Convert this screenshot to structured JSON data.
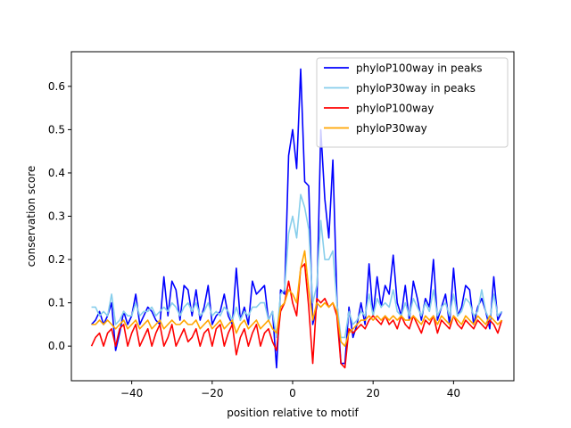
{
  "chart_data": {
    "type": "line",
    "title": "",
    "xlabel": "position relative to motif",
    "ylabel": "conservation score",
    "xlim": [
      -55,
      55
    ],
    "ylim": [
      -0.08,
      0.68
    ],
    "xticks": [
      -40,
      -20,
      0,
      20,
      40
    ],
    "yticks": [
      0.0,
      0.1,
      0.2,
      0.3,
      0.4,
      0.5,
      0.6
    ],
    "legend_position": "top-right",
    "series": [
      {
        "name": "phyloP100way in peaks",
        "color": "#0000ff",
        "x_start": -50,
        "x_step": 1,
        "values": [
          0.05,
          0.06,
          0.08,
          0.05,
          0.07,
          0.1,
          -0.01,
          0.03,
          0.08,
          0.05,
          0.07,
          0.12,
          0.05,
          0.07,
          0.09,
          0.08,
          0.06,
          0.05,
          0.16,
          0.07,
          0.15,
          0.13,
          0.06,
          0.14,
          0.13,
          0.07,
          0.13,
          0.06,
          0.09,
          0.14,
          0.05,
          0.07,
          0.08,
          0.12,
          0.07,
          0.05,
          0.18,
          0.06,
          0.09,
          0.05,
          0.15,
          0.12,
          0.13,
          0.14,
          0.06,
          0.08,
          -0.05,
          0.13,
          0.12,
          0.44,
          0.5,
          0.41,
          0.64,
          0.38,
          0.37,
          0.05,
          0.09,
          0.5,
          0.34,
          0.25,
          0.43,
          0.11,
          -0.04,
          -0.04,
          0.09,
          0.02,
          0.05,
          0.1,
          0.05,
          0.19,
          0.07,
          0.16,
          0.09,
          0.14,
          0.12,
          0.21,
          0.1,
          0.07,
          0.14,
          0.06,
          0.15,
          0.11,
          0.06,
          0.11,
          0.09,
          0.2,
          0.06,
          0.09,
          0.12,
          0.05,
          0.18,
          0.07,
          0.09,
          0.14,
          0.13,
          0.05,
          0.09,
          0.11,
          0.08,
          0.04,
          0.16,
          0.06,
          0.08
        ]
      },
      {
        "name": "phyloP30way in peaks",
        "color": "#87ceeb",
        "x_start": -50,
        "x_step": 1,
        "values": [
          0.09,
          0.09,
          0.07,
          0.08,
          0.07,
          0.12,
          0.05,
          0.06,
          0.08,
          0.07,
          0.07,
          0.1,
          0.07,
          0.08,
          0.08,
          0.09,
          0.07,
          0.08,
          0.09,
          0.08,
          0.1,
          0.09,
          0.07,
          0.09,
          0.1,
          0.08,
          0.1,
          0.07,
          0.08,
          0.1,
          0.07,
          0.08,
          0.07,
          0.09,
          0.08,
          0.06,
          0.09,
          0.06,
          0.08,
          0.07,
          0.09,
          0.09,
          0.1,
          0.1,
          0.06,
          0.08,
          0.02,
          0.12,
          0.13,
          0.26,
          0.3,
          0.25,
          0.35,
          0.32,
          0.27,
          0.1,
          0.14,
          0.29,
          0.2,
          0.2,
          0.22,
          0.1,
          0.02,
          0.02,
          0.08,
          0.05,
          0.06,
          0.08,
          0.07,
          0.12,
          0.07,
          0.11,
          0.09,
          0.1,
          0.09,
          0.13,
          0.08,
          0.07,
          0.1,
          0.07,
          0.11,
          0.09,
          0.07,
          0.1,
          0.08,
          0.13,
          0.07,
          0.09,
          0.1,
          0.07,
          0.12,
          0.07,
          0.08,
          0.11,
          0.1,
          0.07,
          0.08,
          0.13,
          0.08,
          0.06,
          0.12,
          0.07,
          0.08
        ]
      },
      {
        "name": "phyloP100way",
        "color": "#ff0000",
        "x_start": -50,
        "x_step": 1,
        "values": [
          0.0,
          0.02,
          0.03,
          0.0,
          0.03,
          0.04,
          0.0,
          0.04,
          0.05,
          0.0,
          0.03,
          0.05,
          0.0,
          0.02,
          0.04,
          0.0,
          0.03,
          0.05,
          0.0,
          0.02,
          0.05,
          0.0,
          0.02,
          0.04,
          0.01,
          0.02,
          0.04,
          0.0,
          0.03,
          0.04,
          0.0,
          0.04,
          0.05,
          0.0,
          0.03,
          0.05,
          -0.02,
          0.02,
          0.04,
          0.0,
          0.03,
          0.05,
          0.0,
          0.03,
          0.04,
          0.01,
          -0.01,
          0.08,
          0.1,
          0.15,
          0.1,
          0.07,
          0.18,
          0.19,
          0.09,
          -0.04,
          0.11,
          0.1,
          0.11,
          0.09,
          0.1,
          0.07,
          -0.04,
          -0.05,
          0.04,
          0.03,
          0.04,
          0.05,
          0.04,
          0.06,
          0.07,
          0.06,
          0.05,
          0.07,
          0.05,
          0.06,
          0.04,
          0.07,
          0.05,
          0.04,
          0.07,
          0.05,
          0.03,
          0.06,
          0.05,
          0.07,
          0.03,
          0.06,
          0.05,
          0.04,
          0.07,
          0.05,
          0.04,
          0.06,
          0.05,
          0.04,
          0.06,
          0.05,
          0.04,
          0.06,
          0.05,
          0.03,
          0.06
        ]
      },
      {
        "name": "phyloP30way",
        "color": "#ffa500",
        "x_start": -50,
        "x_step": 1,
        "values": [
          0.05,
          0.05,
          0.06,
          0.05,
          0.06,
          0.05,
          0.04,
          0.05,
          0.06,
          0.04,
          0.05,
          0.06,
          0.04,
          0.05,
          0.06,
          0.04,
          0.05,
          0.06,
          0.04,
          0.05,
          0.06,
          0.05,
          0.05,
          0.06,
          0.05,
          0.05,
          0.06,
          0.04,
          0.05,
          0.06,
          0.04,
          0.05,
          0.06,
          0.04,
          0.05,
          0.06,
          0.03,
          0.05,
          0.06,
          0.04,
          0.05,
          0.06,
          0.04,
          0.05,
          0.06,
          0.04,
          0.03,
          0.09,
          0.1,
          0.13,
          0.12,
          0.1,
          0.18,
          0.22,
          0.13,
          0.06,
          0.1,
          0.09,
          0.1,
          0.09,
          0.1,
          0.08,
          0.01,
          0.0,
          0.03,
          0.04,
          0.05,
          0.06,
          0.06,
          0.07,
          0.06,
          0.07,
          0.06,
          0.07,
          0.06,
          0.07,
          0.06,
          0.07,
          0.06,
          0.06,
          0.07,
          0.06,
          0.05,
          0.07,
          0.06,
          0.07,
          0.05,
          0.07,
          0.06,
          0.05,
          0.07,
          0.06,
          0.05,
          0.07,
          0.06,
          0.05,
          0.07,
          0.06,
          0.05,
          0.07,
          0.06,
          0.05,
          0.06
        ]
      }
    ]
  }
}
